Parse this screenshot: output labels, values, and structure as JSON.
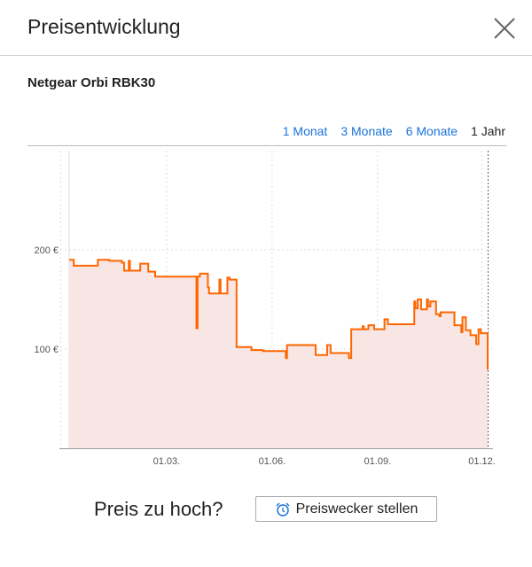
{
  "header": {
    "title": "Preisentwicklung",
    "close_icon": "close-icon"
  },
  "product": {
    "name": "Netgear Orbi RBK30"
  },
  "ranges": [
    {
      "label": "1 Monat",
      "active": false
    },
    {
      "label": "3 Monate",
      "active": false
    },
    {
      "label": "6 Monate",
      "active": false
    },
    {
      "label": "1 Jahr",
      "active": true
    }
  ],
  "chart_data": {
    "type": "area",
    "x_type": "date (DD.MM.)",
    "x_ticks": [
      "01.03.",
      "01.06.",
      "01.09.",
      "01.12."
    ],
    "y_ticks": [
      {
        "value": 100,
        "label": "100 €"
      },
      {
        "value": 200,
        "label": "200 €"
      }
    ],
    "ylim": [
      0,
      300
    ],
    "grid": true,
    "line_color": "#ff6600",
    "fill_color": "#f7e6e4",
    "series": [
      {
        "step": true,
        "points": [
          [
            "06.12.",
            190
          ],
          [
            "10.12.",
            184
          ],
          [
            "31.12.",
            190
          ],
          [
            "10.01.",
            189
          ],
          [
            "21.01.",
            187
          ],
          [
            "23.01.",
            179
          ],
          [
            "27.01.",
            189
          ],
          [
            "28.01.",
            179
          ],
          [
            "06.02.",
            186
          ],
          [
            "13.02.",
            178
          ],
          [
            "19.02.",
            173
          ],
          [
            "26.03.",
            173
          ],
          [
            "27.03.",
            121
          ],
          [
            "28.03.",
            173
          ],
          [
            "30.03.",
            176
          ],
          [
            "06.04.",
            162
          ],
          [
            "07.04.",
            156
          ],
          [
            "16.04.",
            170
          ],
          [
            "17.04.",
            156
          ],
          [
            "23.04.",
            172
          ],
          [
            "25.04.",
            170
          ],
          [
            "01.05.",
            102
          ],
          [
            "14.05.",
            99
          ],
          [
            "24.05.",
            98
          ],
          [
            "13.06.",
            91
          ],
          [
            "14.06.",
            104
          ],
          [
            "09.07.",
            94
          ],
          [
            "19.07.",
            104
          ],
          [
            "22.07.",
            96
          ],
          [
            "07.08.",
            91
          ],
          [
            "09.08.",
            120
          ],
          [
            "19.08.",
            123
          ],
          [
            "20.08.",
            120
          ],
          [
            "24.08.",
            124
          ],
          [
            "29.08.",
            120
          ],
          [
            "07.09.",
            130
          ],
          [
            "10.09.",
            125
          ],
          [
            "03.10.",
            148
          ],
          [
            "04.10.",
            141
          ],
          [
            "06.10.",
            150
          ],
          [
            "09.10.",
            140
          ],
          [
            "14.10.",
            150
          ],
          [
            "15.10.",
            143
          ],
          [
            "17.10.",
            148
          ],
          [
            "22.10.",
            135
          ],
          [
            "25.10.",
            133
          ],
          [
            "26.10.",
            137
          ],
          [
            "07.11.",
            124
          ],
          [
            "13.11.",
            117
          ],
          [
            "14.11.",
            132
          ],
          [
            "17.11.",
            119
          ],
          [
            "21.11.",
            114
          ],
          [
            "26.11.",
            105
          ],
          [
            "28.11.",
            120
          ],
          [
            "30.11.",
            116
          ],
          [
            "06.12.",
            79
          ]
        ]
      }
    ]
  },
  "footer": {
    "question": "Preis zu hoch?",
    "button_label": "Preiswecker stellen",
    "button_icon": "alarm-clock-icon"
  }
}
